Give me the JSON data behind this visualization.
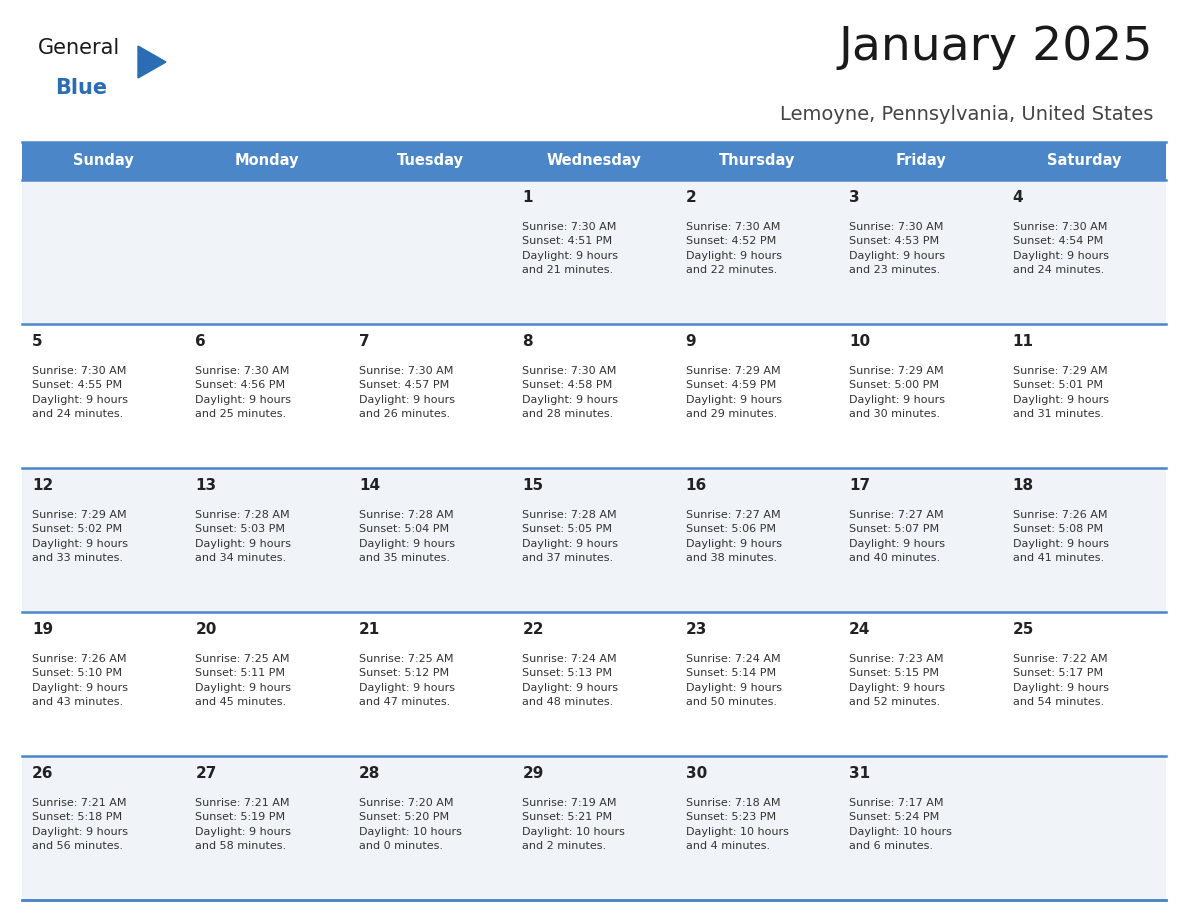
{
  "title": "January 2025",
  "subtitle": "Lemoyne, Pennsylvania, United States",
  "days_of_week": [
    "Sunday",
    "Monday",
    "Tuesday",
    "Wednesday",
    "Thursday",
    "Friday",
    "Saturday"
  ],
  "header_bg": "#4a86c8",
  "header_text": "#ffffff",
  "row_bg_odd": "#ffffff",
  "row_bg_even": "#f0f4f8",
  "cell_text_color": "#333333",
  "day_num_color": "#222222",
  "border_color": "#4a86c8",
  "logo_general_color": "#1a1a1a",
  "logo_blue_color": "#2a6db5",
  "calendar_data": [
    [
      {
        "day": null,
        "info": null
      },
      {
        "day": null,
        "info": null
      },
      {
        "day": null,
        "info": null
      },
      {
        "day": 1,
        "info": "Sunrise: 7:30 AM\nSunset: 4:51 PM\nDaylight: 9 hours\nand 21 minutes."
      },
      {
        "day": 2,
        "info": "Sunrise: 7:30 AM\nSunset: 4:52 PM\nDaylight: 9 hours\nand 22 minutes."
      },
      {
        "day": 3,
        "info": "Sunrise: 7:30 AM\nSunset: 4:53 PM\nDaylight: 9 hours\nand 23 minutes."
      },
      {
        "day": 4,
        "info": "Sunrise: 7:30 AM\nSunset: 4:54 PM\nDaylight: 9 hours\nand 24 minutes."
      }
    ],
    [
      {
        "day": 5,
        "info": "Sunrise: 7:30 AM\nSunset: 4:55 PM\nDaylight: 9 hours\nand 24 minutes."
      },
      {
        "day": 6,
        "info": "Sunrise: 7:30 AM\nSunset: 4:56 PM\nDaylight: 9 hours\nand 25 minutes."
      },
      {
        "day": 7,
        "info": "Sunrise: 7:30 AM\nSunset: 4:57 PM\nDaylight: 9 hours\nand 26 minutes."
      },
      {
        "day": 8,
        "info": "Sunrise: 7:30 AM\nSunset: 4:58 PM\nDaylight: 9 hours\nand 28 minutes."
      },
      {
        "day": 9,
        "info": "Sunrise: 7:29 AM\nSunset: 4:59 PM\nDaylight: 9 hours\nand 29 minutes."
      },
      {
        "day": 10,
        "info": "Sunrise: 7:29 AM\nSunset: 5:00 PM\nDaylight: 9 hours\nand 30 minutes."
      },
      {
        "day": 11,
        "info": "Sunrise: 7:29 AM\nSunset: 5:01 PM\nDaylight: 9 hours\nand 31 minutes."
      }
    ],
    [
      {
        "day": 12,
        "info": "Sunrise: 7:29 AM\nSunset: 5:02 PM\nDaylight: 9 hours\nand 33 minutes."
      },
      {
        "day": 13,
        "info": "Sunrise: 7:28 AM\nSunset: 5:03 PM\nDaylight: 9 hours\nand 34 minutes."
      },
      {
        "day": 14,
        "info": "Sunrise: 7:28 AM\nSunset: 5:04 PM\nDaylight: 9 hours\nand 35 minutes."
      },
      {
        "day": 15,
        "info": "Sunrise: 7:28 AM\nSunset: 5:05 PM\nDaylight: 9 hours\nand 37 minutes."
      },
      {
        "day": 16,
        "info": "Sunrise: 7:27 AM\nSunset: 5:06 PM\nDaylight: 9 hours\nand 38 minutes."
      },
      {
        "day": 17,
        "info": "Sunrise: 7:27 AM\nSunset: 5:07 PM\nDaylight: 9 hours\nand 40 minutes."
      },
      {
        "day": 18,
        "info": "Sunrise: 7:26 AM\nSunset: 5:08 PM\nDaylight: 9 hours\nand 41 minutes."
      }
    ],
    [
      {
        "day": 19,
        "info": "Sunrise: 7:26 AM\nSunset: 5:10 PM\nDaylight: 9 hours\nand 43 minutes."
      },
      {
        "day": 20,
        "info": "Sunrise: 7:25 AM\nSunset: 5:11 PM\nDaylight: 9 hours\nand 45 minutes."
      },
      {
        "day": 21,
        "info": "Sunrise: 7:25 AM\nSunset: 5:12 PM\nDaylight: 9 hours\nand 47 minutes."
      },
      {
        "day": 22,
        "info": "Sunrise: 7:24 AM\nSunset: 5:13 PM\nDaylight: 9 hours\nand 48 minutes."
      },
      {
        "day": 23,
        "info": "Sunrise: 7:24 AM\nSunset: 5:14 PM\nDaylight: 9 hours\nand 50 minutes."
      },
      {
        "day": 24,
        "info": "Sunrise: 7:23 AM\nSunset: 5:15 PM\nDaylight: 9 hours\nand 52 minutes."
      },
      {
        "day": 25,
        "info": "Sunrise: 7:22 AM\nSunset: 5:17 PM\nDaylight: 9 hours\nand 54 minutes."
      }
    ],
    [
      {
        "day": 26,
        "info": "Sunrise: 7:21 AM\nSunset: 5:18 PM\nDaylight: 9 hours\nand 56 minutes."
      },
      {
        "day": 27,
        "info": "Sunrise: 7:21 AM\nSunset: 5:19 PM\nDaylight: 9 hours\nand 58 minutes."
      },
      {
        "day": 28,
        "info": "Sunrise: 7:20 AM\nSunset: 5:20 PM\nDaylight: 10 hours\nand 0 minutes."
      },
      {
        "day": 29,
        "info": "Sunrise: 7:19 AM\nSunset: 5:21 PM\nDaylight: 10 hours\nand 2 minutes."
      },
      {
        "day": 30,
        "info": "Sunrise: 7:18 AM\nSunset: 5:23 PM\nDaylight: 10 hours\nand 4 minutes."
      },
      {
        "day": 31,
        "info": "Sunrise: 7:17 AM\nSunset: 5:24 PM\nDaylight: 10 hours\nand 6 minutes."
      },
      {
        "day": null,
        "info": null
      }
    ]
  ]
}
